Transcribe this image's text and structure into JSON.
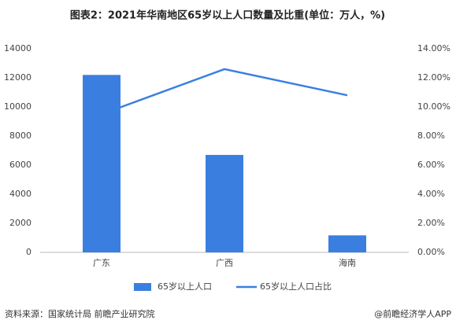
{
  "chart_data": {
    "type": "bar",
    "title": "图表2：2021年华南地区65岁以上人口数量及比重(单位：万人，%)",
    "categories": [
      "广东",
      "广西",
      "海南"
    ],
    "series": [
      {
        "name": "65岁以上人口",
        "type": "bar",
        "color": "#3a7fe0",
        "values": [
          12200,
          6700,
          1170
        ]
      },
      {
        "name": "65岁以上人口占比",
        "type": "line",
        "axis": "y2",
        "color": "#3a7fe0",
        "values": [
          9.5,
          12.6,
          10.8
        ]
      }
    ],
    "ylim": [
      0,
      14000
    ],
    "yticks": [
      0,
      2000,
      4000,
      6000,
      8000,
      10000,
      12000,
      14000
    ],
    "y2lim": [
      0,
      14
    ],
    "y2ticks": [
      {
        "value": 0,
        "label": "0.00%"
      },
      {
        "value": 2,
        "label": "2.00%"
      },
      {
        "value": 4,
        "label": "4.00%"
      },
      {
        "value": 6,
        "label": "6.00%"
      },
      {
        "value": 8,
        "label": "8.00%"
      },
      {
        "value": 10,
        "label": "10.00%"
      },
      {
        "value": 12,
        "label": "12.00%"
      },
      {
        "value": 14,
        "label": "14.00%"
      }
    ],
    "grid": false,
    "legend": "bottom",
    "source": "资料来源：国家统计局 前瞻产业研究院",
    "credit": "@前瞻经济学人APP"
  }
}
